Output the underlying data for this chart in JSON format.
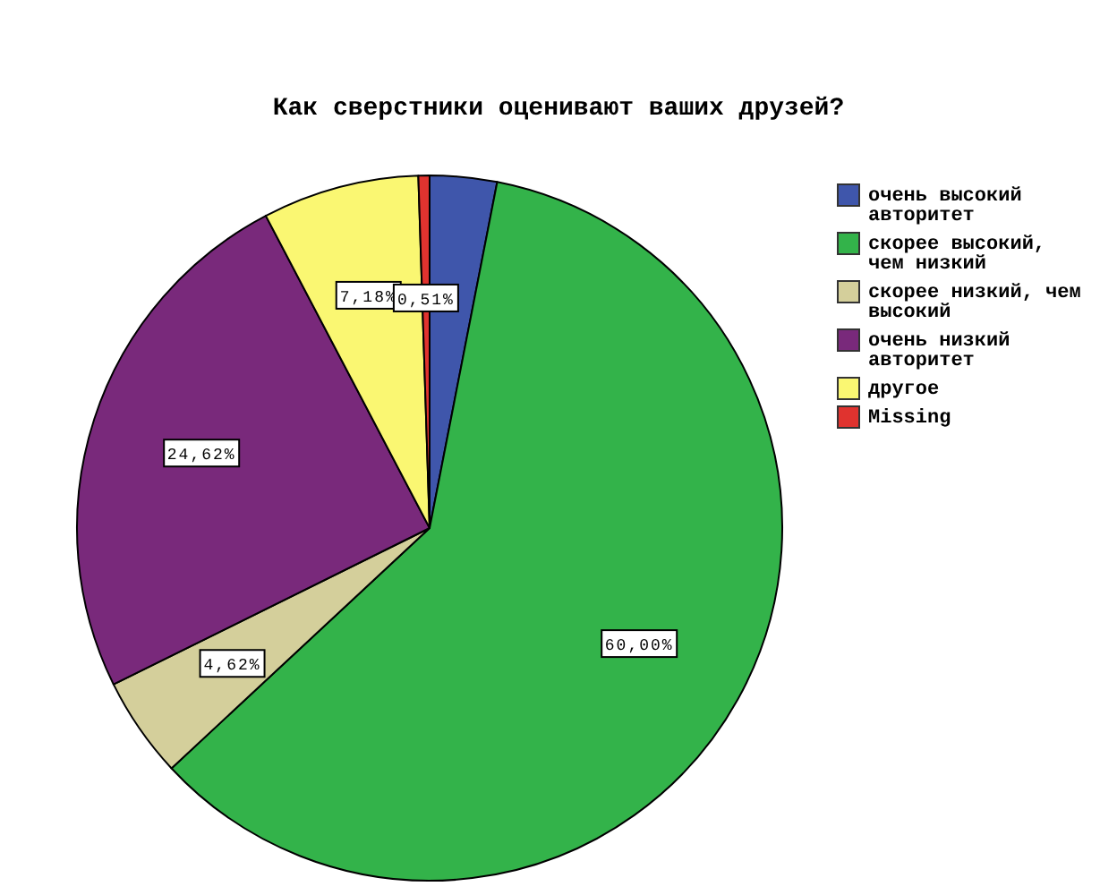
{
  "chart_data": {
    "type": "pie",
    "title": "Как сверстники оценивают ваших друзей?",
    "categories": [
      "очень высокий авторитет",
      "скорее высокий, чем низкий",
      "скорее низкий, чем высокий",
      "очень низкий авторитет",
      "другое",
      "Missing"
    ],
    "values": [
      3.07,
      60.0,
      4.62,
      24.62,
      7.18,
      0.51
    ],
    "colors": [
      "#3f56ab",
      "#33b34a",
      "#d4cf9b",
      "#79297b",
      "#faf772",
      "#e0332f"
    ],
    "value_labels": [
      null,
      "60,00%",
      "4,62%",
      "24,62%",
      "7,18%",
      "0,51%"
    ],
    "legend": "right"
  }
}
